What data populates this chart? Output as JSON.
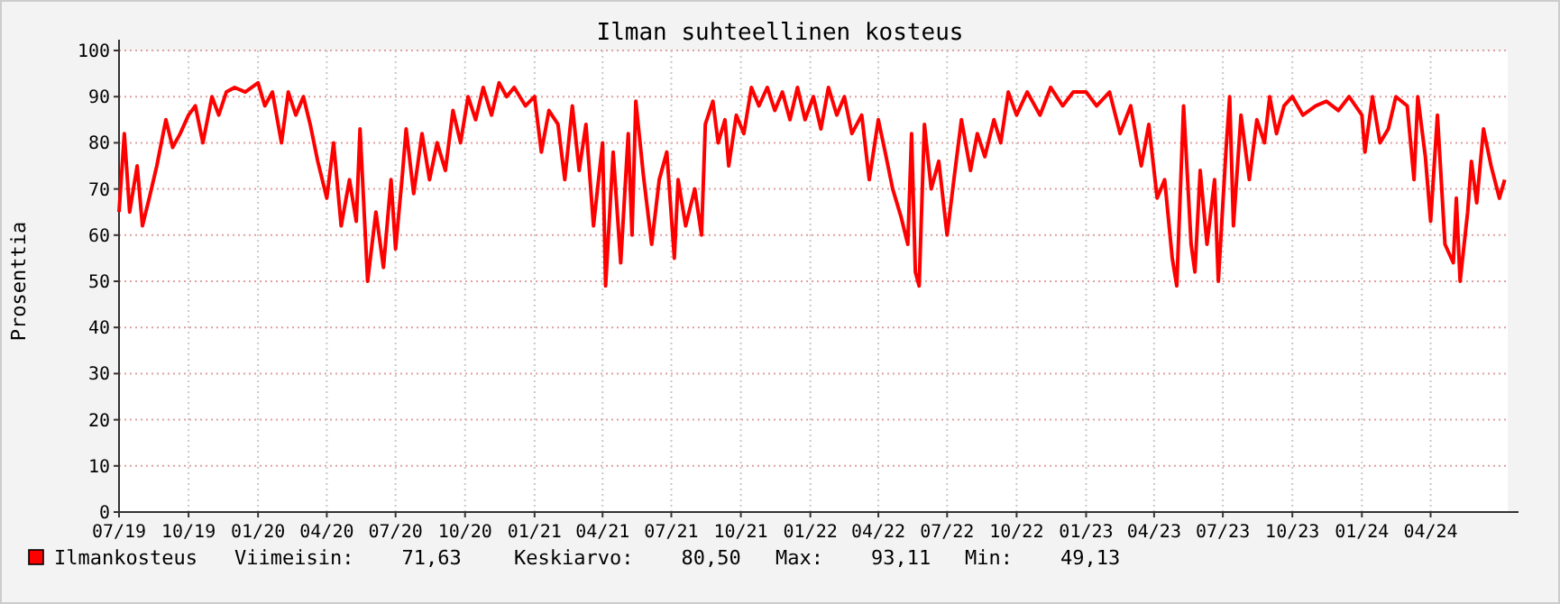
{
  "chart_data": {
    "type": "line",
    "title": "Ilman suhteellinen kosteus",
    "ylabel": "Prosenttia",
    "xlim": [
      "2019-07-01",
      "2024-07-12"
    ],
    "xticks": [
      {
        "value": "2019-07-01",
        "label": "07/19"
      },
      {
        "value": "2019-10-01",
        "label": "10/19"
      },
      {
        "value": "2020-01-01",
        "label": "01/20"
      },
      {
        "value": "2020-04-01",
        "label": "04/20"
      },
      {
        "value": "2020-07-01",
        "label": "07/20"
      },
      {
        "value": "2020-10-01",
        "label": "10/20"
      },
      {
        "value": "2021-01-01",
        "label": "01/21"
      },
      {
        "value": "2021-04-01",
        "label": "04/21"
      },
      {
        "value": "2021-07-01",
        "label": "07/21"
      },
      {
        "value": "2021-10-01",
        "label": "10/21"
      },
      {
        "value": "2022-01-01",
        "label": "01/22"
      },
      {
        "value": "2022-04-01",
        "label": "04/22"
      },
      {
        "value": "2022-07-01",
        "label": "07/22"
      },
      {
        "value": "2022-10-01",
        "label": "10/22"
      },
      {
        "value": "2023-01-01",
        "label": "01/23"
      },
      {
        "value": "2023-04-01",
        "label": "04/23"
      },
      {
        "value": "2023-07-01",
        "label": "07/23"
      },
      {
        "value": "2023-10-01",
        "label": "10/23"
      },
      {
        "value": "2024-01-01",
        "label": "01/24"
      },
      {
        "value": "2024-04-01",
        "label": "04/24"
      }
    ],
    "ylim": [
      0,
      100
    ],
    "yticks": [
      0,
      10,
      20,
      30,
      40,
      50,
      60,
      70,
      80,
      90,
      100
    ],
    "grid": true,
    "legend": "bottom",
    "marker": "none",
    "line_style": "solid",
    "x": [
      "2019-07-01",
      "2019-07-08",
      "2019-07-15",
      "2019-07-25",
      "2019-08-01",
      "2019-08-10",
      "2019-08-20",
      "2019-09-01",
      "2019-09-10",
      "2019-09-20",
      "2019-10-01",
      "2019-10-10",
      "2019-10-20",
      "2019-11-01",
      "2019-11-10",
      "2019-11-20",
      "2019-12-01",
      "2019-12-15",
      "2020-01-01",
      "2020-01-10",
      "2020-01-20",
      "2020-02-01",
      "2020-02-10",
      "2020-02-20",
      "2020-03-01",
      "2020-03-10",
      "2020-03-20",
      "2020-04-01",
      "2020-04-10",
      "2020-04-20",
      "2020-05-01",
      "2020-05-10",
      "2020-05-15",
      "2020-05-25",
      "2020-06-05",
      "2020-06-15",
      "2020-06-25",
      "2020-07-01",
      "2020-07-10",
      "2020-07-15",
      "2020-07-25",
      "2020-08-05",
      "2020-08-15",
      "2020-08-25",
      "2020-09-05",
      "2020-09-15",
      "2020-09-25",
      "2020-10-05",
      "2020-10-15",
      "2020-10-25",
      "2020-11-05",
      "2020-11-15",
      "2020-11-25",
      "2020-12-05",
      "2020-12-20",
      "2021-01-01",
      "2021-01-10",
      "2021-01-20",
      "2021-02-01",
      "2021-02-10",
      "2021-02-20",
      "2021-03-01",
      "2021-03-10",
      "2021-03-20",
      "2021-04-01",
      "2021-04-05",
      "2021-04-15",
      "2021-04-25",
      "2021-05-05",
      "2021-05-10",
      "2021-05-15",
      "2021-05-25",
      "2021-06-05",
      "2021-06-15",
      "2021-06-25",
      "2021-07-05",
      "2021-07-10",
      "2021-07-20",
      "2021-08-01",
      "2021-08-10",
      "2021-08-15",
      "2021-08-25",
      "2021-09-01",
      "2021-09-10",
      "2021-09-15",
      "2021-09-25",
      "2021-10-05",
      "2021-10-15",
      "2021-10-25",
      "2021-11-05",
      "2021-11-15",
      "2021-11-25",
      "2021-12-05",
      "2021-12-15",
      "2021-12-25",
      "2022-01-05",
      "2022-01-15",
      "2022-01-25",
      "2022-02-05",
      "2022-02-15",
      "2022-02-25",
      "2022-03-10",
      "2022-03-20",
      "2022-04-01",
      "2022-04-10",
      "2022-04-20",
      "2022-05-01",
      "2022-05-10",
      "2022-05-15",
      "2022-05-20",
      "2022-05-25",
      "2022-06-01",
      "2022-06-10",
      "2022-06-20",
      "2022-07-01",
      "2022-07-10",
      "2022-07-20",
      "2022-08-01",
      "2022-08-10",
      "2022-08-20",
      "2022-09-01",
      "2022-09-10",
      "2022-09-20",
      "2022-10-01",
      "2022-10-15",
      "2022-11-01",
      "2022-11-15",
      "2022-12-01",
      "2022-12-15",
      "2023-01-01",
      "2023-01-15",
      "2023-02-01",
      "2023-02-15",
      "2023-03-01",
      "2023-03-15",
      "2023-03-25",
      "2023-04-05",
      "2023-04-15",
      "2023-04-25",
      "2023-05-01",
      "2023-05-10",
      "2023-05-20",
      "2023-05-25",
      "2023-06-01",
      "2023-06-10",
      "2023-06-20",
      "2023-06-25",
      "2023-07-05",
      "2023-07-10",
      "2023-07-15",
      "2023-07-25",
      "2023-08-05",
      "2023-08-15",
      "2023-08-25",
      "2023-09-01",
      "2023-09-10",
      "2023-09-20",
      "2023-10-01",
      "2023-10-15",
      "2023-11-01",
      "2023-11-15",
      "2023-12-01",
      "2023-12-15",
      "2024-01-01",
      "2024-01-05",
      "2024-01-15",
      "2024-01-25",
      "2024-02-05",
      "2024-02-15",
      "2024-03-01",
      "2024-03-10",
      "2024-03-15",
      "2024-03-25",
      "2024-04-01",
      "2024-04-10",
      "2024-04-20",
      "2024-05-01",
      "2024-05-05",
      "2024-05-10",
      "2024-05-20",
      "2024-05-25",
      "2024-06-01",
      "2024-06-10",
      "2024-06-20",
      "2024-07-01",
      "2024-07-08"
    ],
    "series": [
      {
        "name": "Ilmankosteus",
        "color": "#ff0000",
        "values": [
          65,
          82,
          65,
          75,
          62,
          68,
          75,
          85,
          79,
          82,
          86,
          88,
          80,
          90,
          86,
          91,
          92,
          91,
          93,
          88,
          91,
          80,
          91,
          86,
          90,
          84,
          76,
          68,
          80,
          62,
          72,
          63,
          83,
          50,
          65,
          53,
          72,
          57,
          73,
          83,
          69,
          82,
          72,
          80,
          74,
          87,
          80,
          90,
          85,
          92,
          86,
          93,
          90,
          92,
          88,
          90,
          78,
          87,
          84,
          72,
          88,
          74,
          84,
          62,
          80,
          49,
          78,
          54,
          82,
          60,
          89,
          73,
          58,
          72,
          78,
          55,
          72,
          62,
          70,
          60,
          84,
          89,
          80,
          85,
          75,
          86,
          82,
          92,
          88,
          92,
          87,
          91,
          85,
          92,
          85,
          90,
          83,
          92,
          86,
          90,
          82,
          86,
          72,
          85,
          78,
          70,
          64,
          58,
          82,
          52,
          49,
          84,
          70,
          76,
          60,
          72,
          85,
          74,
          82,
          77,
          85,
          80,
          91,
          86,
          91,
          86,
          92,
          88,
          91,
          91,
          88,
          91,
          82,
          88,
          75,
          84,
          68,
          72,
          55,
          49,
          88,
          58,
          52,
          74,
          58,
          72,
          50,
          78,
          90,
          62,
          86,
          72,
          85,
          80,
          90,
          82,
          88,
          90,
          86,
          88,
          89,
          87,
          90,
          86,
          78,
          90,
          80,
          83,
          90,
          88,
          72,
          90,
          77,
          63,
          86,
          58,
          54,
          68,
          50,
          65,
          76,
          67,
          83,
          75,
          68,
          72
        ]
      }
    ],
    "annotations": [
      "Viimeisin:    71,63",
      "Keskiarvo:    80,50",
      "Max:    93,11",
      "Min:    49,13"
    ]
  }
}
